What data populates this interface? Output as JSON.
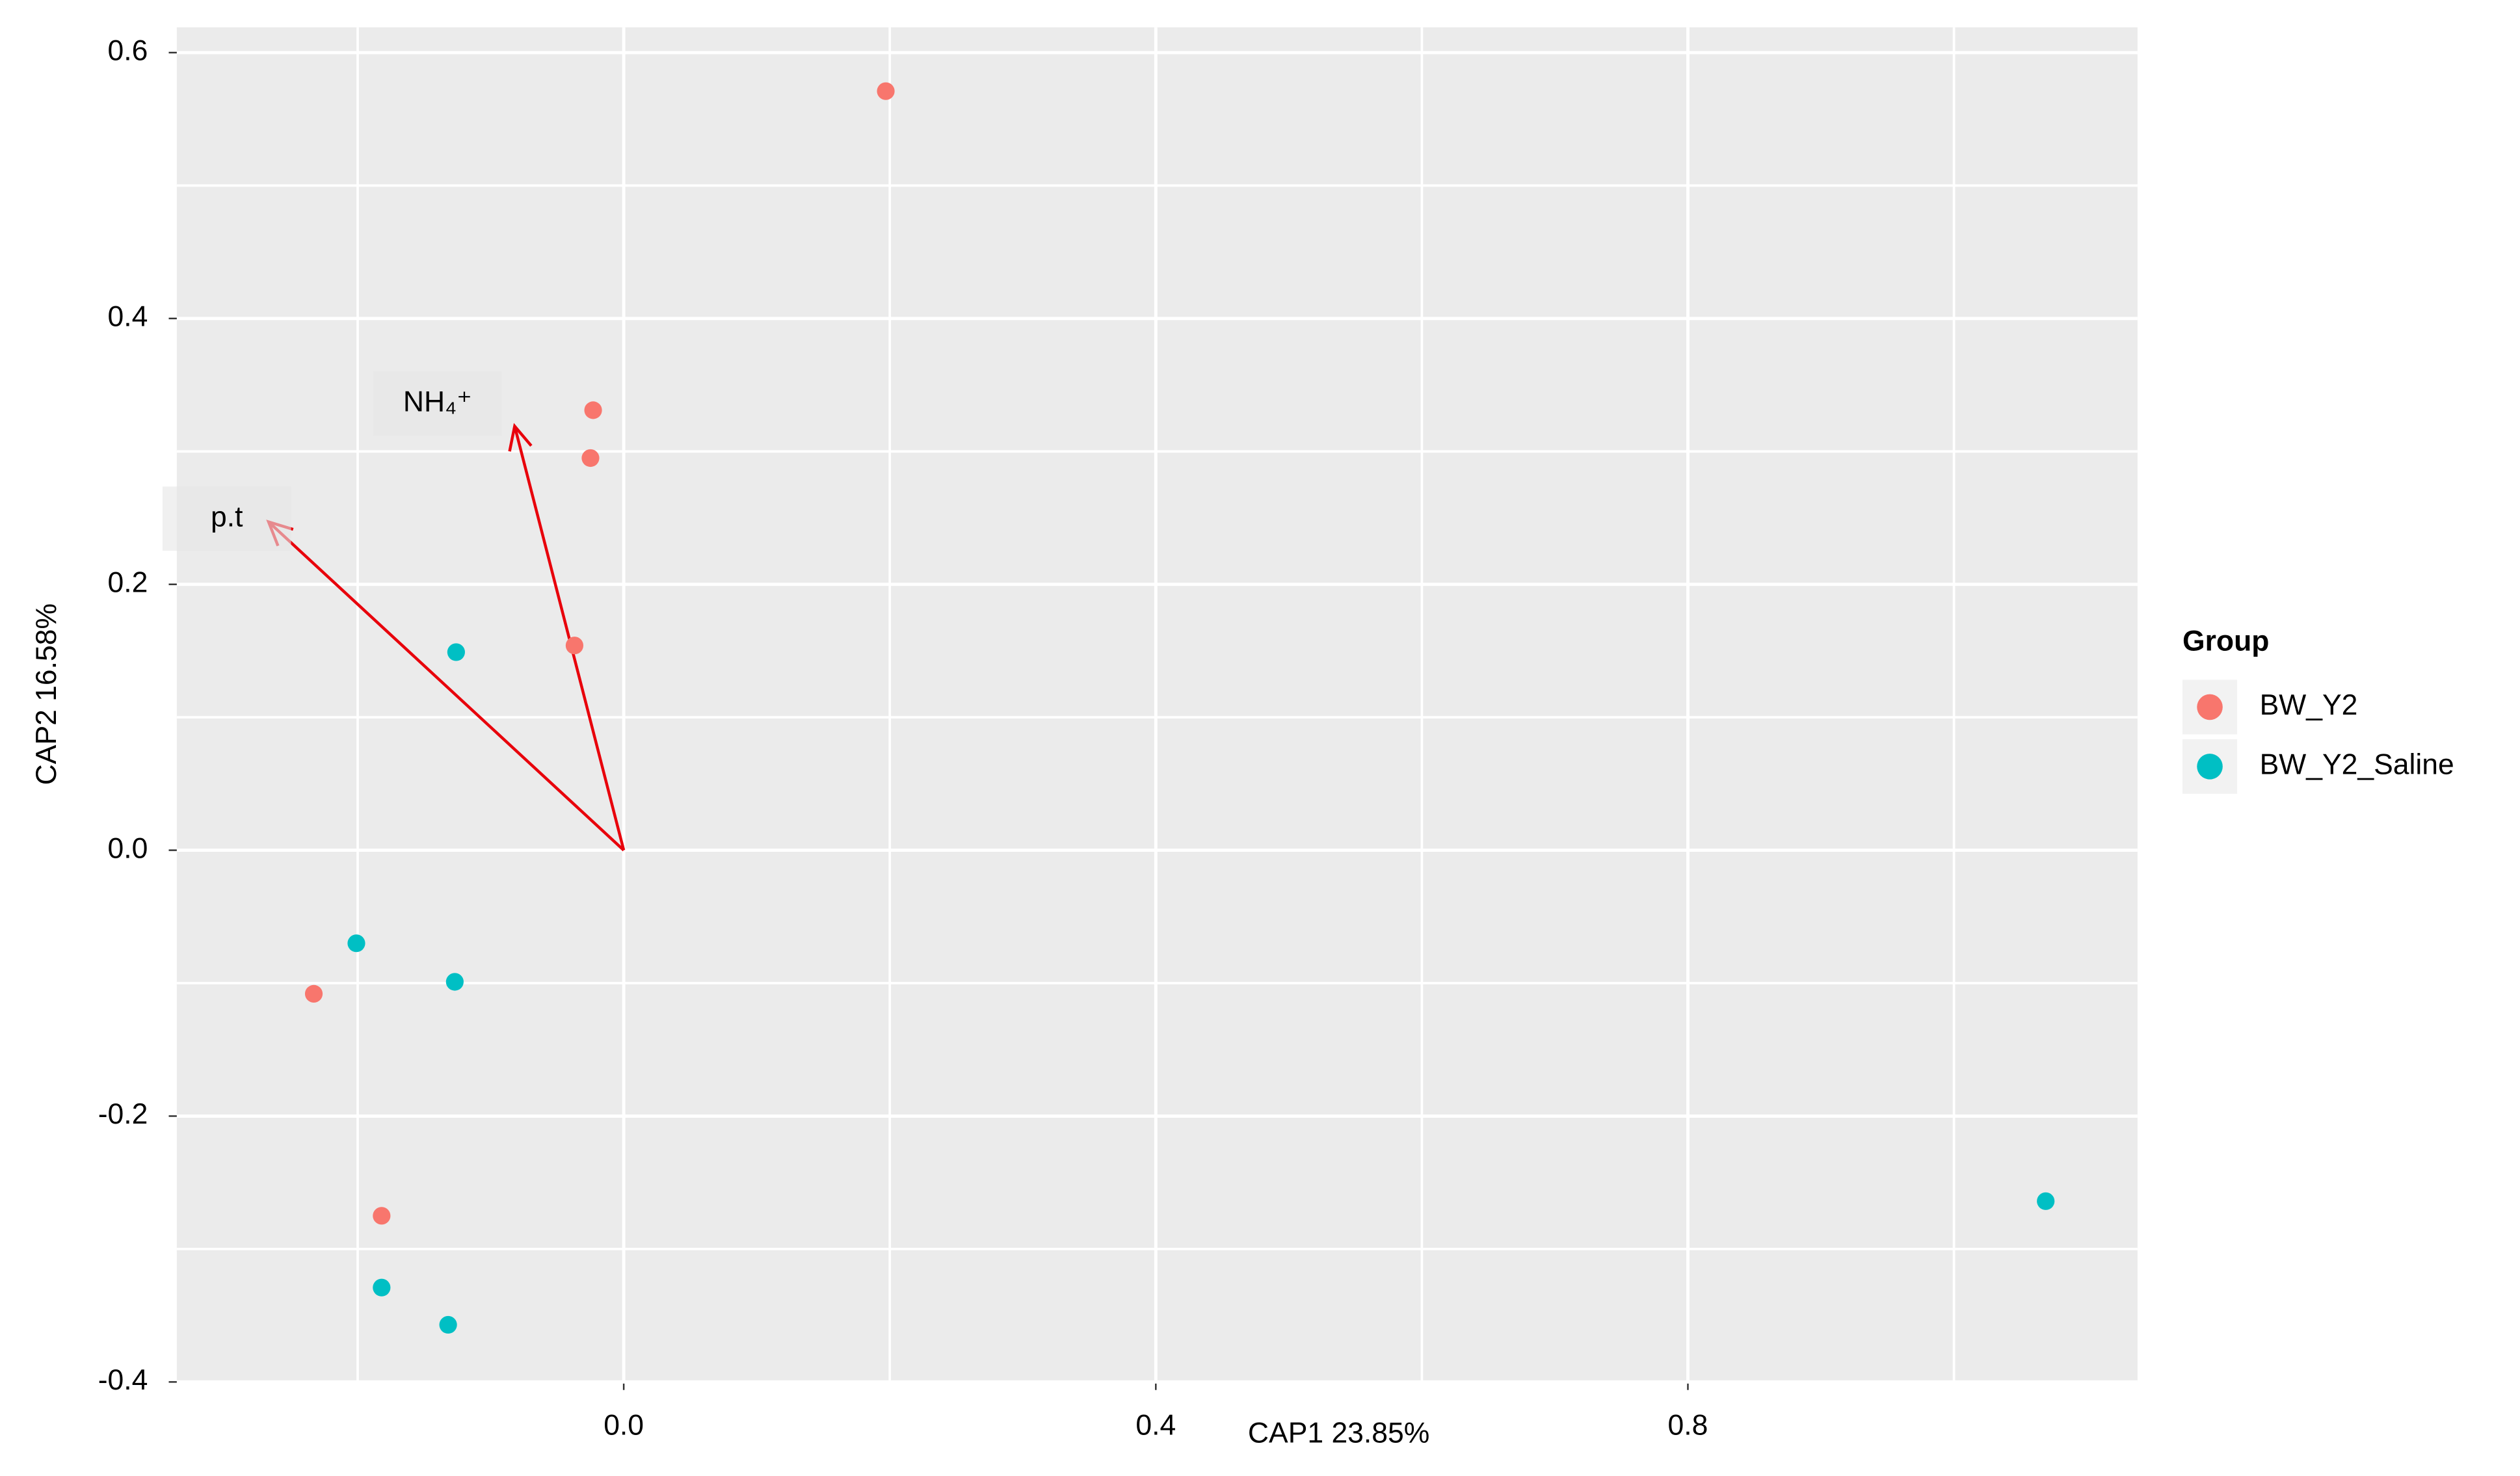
{
  "chart_data": {
    "type": "scatter",
    "xlabel": "CAP1 23.85%",
    "ylabel": "CAP2 16.58%",
    "xlim": [
      -0.336,
      1.138
    ],
    "ylim": [
      -0.4,
      0.619
    ],
    "xticks": [
      {
        "value": 0,
        "label": "0.0"
      },
      0.4,
      0.8
    ],
    "yticks": [
      0.6,
      0.4,
      0.2,
      {
        "value": 0,
        "label": "0.0"
      },
      -0.2,
      -0.4
    ],
    "x_minor_ticks": [
      -0.2,
      0.2,
      0.6,
      1.0
    ],
    "y_minor_ticks": [
      0.5,
      0.3,
      0.1,
      -0.1,
      -0.3
    ],
    "grid": true,
    "legend_title": "Group",
    "legend_position": "right",
    "series": [
      {
        "name": "BW_Y2",
        "color": "#f8766d",
        "x": [
          0.197,
          -0.023,
          -0.025,
          -0.037,
          -0.233,
          -0.182
        ],
        "values": [
          0.571,
          0.331,
          0.295,
          0.154,
          -0.108,
          -0.275
        ]
      },
      {
        "name": "BW_Y2_Saline",
        "color": "#00bfc4",
        "x": [
          -0.126,
          -0.201,
          -0.127,
          -0.182,
          -0.132,
          1.069
        ],
        "values": [
          0.149,
          -0.07,
          -0.099,
          -0.329,
          -0.357,
          -0.264
        ]
      }
    ],
    "vectors": [
      {
        "name": "p.t",
        "x": -0.267,
        "y": 0.247
      },
      {
        "name": "NH₄⁺",
        "x": -0.082,
        "y": 0.319
      }
    ],
    "vector_color": "#e8000b"
  }
}
